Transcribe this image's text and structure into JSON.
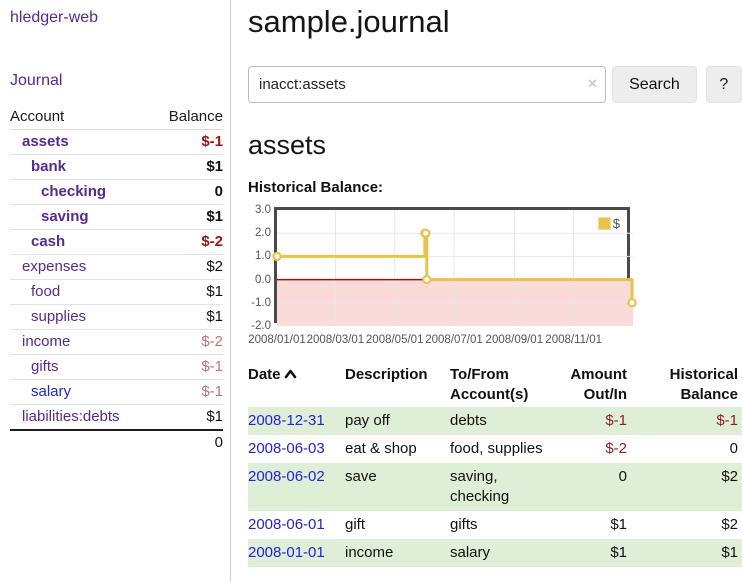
{
  "app": {
    "brand": "hledger-web",
    "nav_journal": "Journal"
  },
  "sidebar": {
    "headers": {
      "account": "Account",
      "balance": "Balance"
    },
    "rows": [
      {
        "name": "assets",
        "balance": "$-1",
        "indent": 1,
        "bold": true,
        "negative": true,
        "unvisited": false
      },
      {
        "name": "bank",
        "balance": "$1",
        "indent": 2,
        "bold": true,
        "negative": false,
        "unvisited": false
      },
      {
        "name": "checking",
        "balance": "0",
        "indent": 3,
        "bold": true,
        "negative": false,
        "unvisited": false
      },
      {
        "name": "saving",
        "balance": "$1",
        "indent": 3,
        "bold": true,
        "negative": false,
        "unvisited": false
      },
      {
        "name": "cash",
        "balance": "$-2",
        "indent": 2,
        "bold": true,
        "negative": true,
        "unvisited": false
      },
      {
        "name": "expenses",
        "balance": "$2",
        "indent": 1,
        "bold": false,
        "negative": false,
        "unvisited": false
      },
      {
        "name": "food",
        "balance": "$1",
        "indent": 2,
        "bold": false,
        "negative": false,
        "unvisited": false
      },
      {
        "name": "supplies",
        "balance": "$1",
        "indent": 2,
        "bold": false,
        "negative": false,
        "unvisited": false
      },
      {
        "name": "income",
        "balance": "$-2",
        "indent": 1,
        "bold": false,
        "negative": true,
        "unvisited": false
      },
      {
        "name": "gifts",
        "balance": "$-1",
        "indent": 2,
        "bold": false,
        "negative": true,
        "unvisited": false
      },
      {
        "name": "salary",
        "balance": "$-1",
        "indent": 2,
        "bold": false,
        "negative": true,
        "unvisited": true
      },
      {
        "name": "liabilities:debts",
        "balance": "$1",
        "indent": 1,
        "bold": false,
        "negative": false,
        "unvisited": false
      }
    ],
    "total": "0"
  },
  "header": {
    "title": "sample.journal"
  },
  "search": {
    "value": "inacct:assets",
    "clear_icon": "×",
    "button_label": "Search",
    "help_label": "?"
  },
  "account_page": {
    "title": "assets",
    "section_label": "Historical Balance:"
  },
  "chart_data": {
    "type": "line",
    "style": "steps",
    "title": "Historical Balance:",
    "series": [
      {
        "name": "$",
        "color": "#e9c34b",
        "points": [
          [
            "2008-01-01",
            1
          ],
          [
            "2008-06-01",
            2
          ],
          [
            "2008-06-02",
            2
          ],
          [
            "2008-06-03",
            0
          ],
          [
            "2008-12-31",
            -1
          ]
        ]
      }
    ],
    "xlim": [
      "2008-01-01",
      "2009-01-01"
    ],
    "ylim": [
      -2,
      3
    ],
    "yticks": [
      3.0,
      2.0,
      1.0,
      0.0,
      -1.0,
      -2.0
    ],
    "xticks": [
      "2008/01/01",
      "2008/03/01",
      "2008/05/01",
      "2008/07/01",
      "2008/09/01",
      "2008/11/01"
    ],
    "grid": true,
    "legend_position": "top-right",
    "zero_line_color": "#911616",
    "negative_fill": "#fbdada",
    "grid_color": "#e7e7e7"
  },
  "register": {
    "headers": {
      "date": "Date",
      "description": "Description",
      "accounts": "To/From Account(s)",
      "amount": "Amount Out/In",
      "balance": "Historical Balance"
    },
    "sort": "ascending",
    "rows": [
      {
        "date": "2008-12-31",
        "description": "pay off",
        "accounts": [
          "debts"
        ],
        "amount": "$-1",
        "balance": "$-1",
        "amount_negative": true,
        "balance_negative": true
      },
      {
        "date": "2008-06-03",
        "description": "eat & shop",
        "accounts": [
          "food",
          "supplies"
        ],
        "amount": "$-2",
        "balance": "0",
        "amount_negative": true,
        "balance_negative": false
      },
      {
        "date": "2008-06-02",
        "description": "save",
        "accounts": [
          "saving",
          "checking"
        ],
        "amount": "0",
        "balance": "$2",
        "amount_negative": false,
        "balance_negative": false
      },
      {
        "date": "2008-06-01",
        "description": "gift",
        "accounts": [
          "gifts"
        ],
        "amount": "$1",
        "balance": "$2",
        "amount_negative": false,
        "balance_negative": false
      },
      {
        "date": "2008-01-01",
        "description": "income",
        "accounts": [
          "salary"
        ],
        "amount": "$1",
        "balance": "$1",
        "amount_negative": false,
        "balance_negative": false
      }
    ]
  }
}
